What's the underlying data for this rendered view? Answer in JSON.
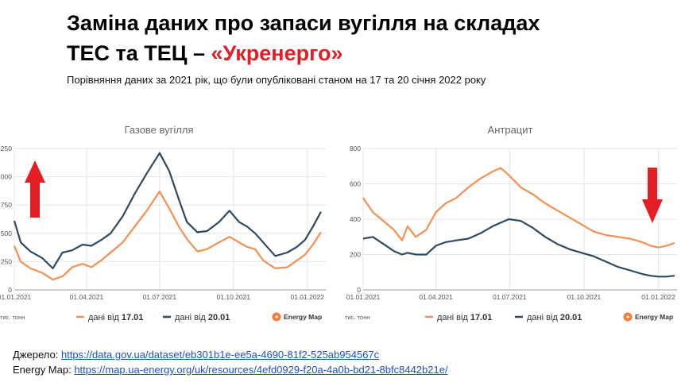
{
  "header": {
    "title_line1": "Заміна даних про запаси вугілля на складах",
    "title_line2_prefix": "ТЕС та ТЕЦ – ",
    "title_line2_accent": "«Укренерго»",
    "subtitle": "Порівняння даних за 2021 рік, що були опубліковані станом на 17 та 20 січня 2022 року"
  },
  "colors": {
    "orange": "#f58f52",
    "navy": "#2d4a63",
    "arrow_red": "#e31e24",
    "grid": "#e6e6e6"
  },
  "sources": {
    "label1": "Джерело: ",
    "link1": "https://data.gov.ua/dataset/eb301b1e-ee5a-4690-81f2-525ab954567c",
    "label2": "Energy Map: ",
    "link2": "https://map.ua-energy.org/uk/resources/4efd0929-f20a-4a0b-bd21-8bfc8442b21e/"
  },
  "chart_data": [
    {
      "type": "line",
      "title": "Газове вугілля",
      "unit_label": "тис. тонн",
      "brand": "Energy Map",
      "xlim": [
        0,
        388
      ],
      "ylim": [
        0,
        1250
      ],
      "yticks": [
        0,
        250,
        500,
        750,
        1000,
        1250
      ],
      "ytick_labels": [
        "0",
        "250",
        "500",
        "750",
        "1000",
        "1250"
      ],
      "xticks": [
        0,
        90,
        181,
        273,
        365
      ],
      "xtick_labels": [
        "01.01.2021",
        "01.04.2021",
        "01.07.2021",
        "01.10.2021",
        "01.01.2022"
      ],
      "arrow": "up",
      "series": [
        {
          "name": "дані від 17.01",
          "color": "#f58f52",
          "x": [
            0,
            8,
            20,
            35,
            48,
            60,
            72,
            85,
            96,
            108,
            120,
            135,
            150,
            165,
            181,
            193,
            205,
            215,
            228,
            240,
            255,
            268,
            280,
            290,
            300,
            310,
            325,
            340,
            352,
            362,
            372,
            382
          ],
          "y": [
            390,
            250,
            190,
            150,
            90,
            120,
            200,
            230,
            200,
            260,
            330,
            420,
            560,
            700,
            870,
            720,
            560,
            450,
            340,
            360,
            420,
            470,
            420,
            380,
            360,
            260,
            190,
            200,
            260,
            310,
            400,
            510
          ]
        },
        {
          "name": "дані від 20.01",
          "color": "#2d4a63",
          "x": [
            0,
            8,
            20,
            35,
            48,
            60,
            72,
            85,
            96,
            108,
            120,
            135,
            150,
            165,
            181,
            193,
            205,
            215,
            228,
            240,
            255,
            268,
            280,
            290,
            300,
            310,
            325,
            340,
            352,
            362,
            372,
            382
          ],
          "y": [
            610,
            420,
            340,
            280,
            190,
            330,
            350,
            400,
            390,
            440,
            500,
            650,
            850,
            1030,
            1210,
            1050,
            800,
            600,
            510,
            520,
            600,
            700,
            600,
            560,
            500,
            420,
            300,
            330,
            380,
            440,
            560,
            690
          ]
        }
      ]
    },
    {
      "type": "line",
      "title": "Антрацит",
      "unit_label": "тис. тонн",
      "brand": "Energy Map",
      "xlim": [
        0,
        388
      ],
      "ylim": [
        0,
        800
      ],
      "yticks": [
        0,
        200,
        400,
        600,
        800
      ],
      "ytick_labels": [
        "0",
        "200",
        "400",
        "600",
        "800"
      ],
      "xticks": [
        0,
        90,
        181,
        273,
        365
      ],
      "xtick_labels": [
        "01.01.2021",
        "01.04.2021",
        "01.07.2021",
        "01.10.2021",
        "01.01.2022"
      ],
      "arrow": "down",
      "series": [
        {
          "name": "дані від 17.01",
          "color": "#f58f52",
          "x": [
            0,
            12,
            25,
            38,
            48,
            55,
            65,
            78,
            90,
            102,
            115,
            130,
            145,
            160,
            170,
            180,
            195,
            210,
            225,
            240,
            255,
            270,
            285,
            300,
            315,
            330,
            345,
            355,
            365,
            375,
            385
          ],
          "y": [
            520,
            440,
            390,
            340,
            280,
            360,
            300,
            340,
            440,
            490,
            520,
            580,
            630,
            670,
            690,
            650,
            580,
            540,
            490,
            450,
            410,
            370,
            330,
            310,
            300,
            290,
            270,
            250,
            240,
            250,
            265
          ]
        },
        {
          "name": "дані від 20.01",
          "color": "#2d4a63",
          "x": [
            0,
            12,
            25,
            38,
            48,
            55,
            65,
            78,
            90,
            102,
            115,
            130,
            145,
            160,
            170,
            180,
            195,
            210,
            225,
            240,
            255,
            270,
            285,
            300,
            315,
            330,
            345,
            355,
            365,
            375,
            385
          ],
          "y": [
            290,
            300,
            260,
            220,
            200,
            210,
            200,
            200,
            250,
            270,
            280,
            290,
            320,
            360,
            380,
            400,
            390,
            350,
            300,
            260,
            230,
            210,
            190,
            160,
            130,
            110,
            90,
            80,
            75,
            75,
            80
          ]
        }
      ]
    }
  ]
}
